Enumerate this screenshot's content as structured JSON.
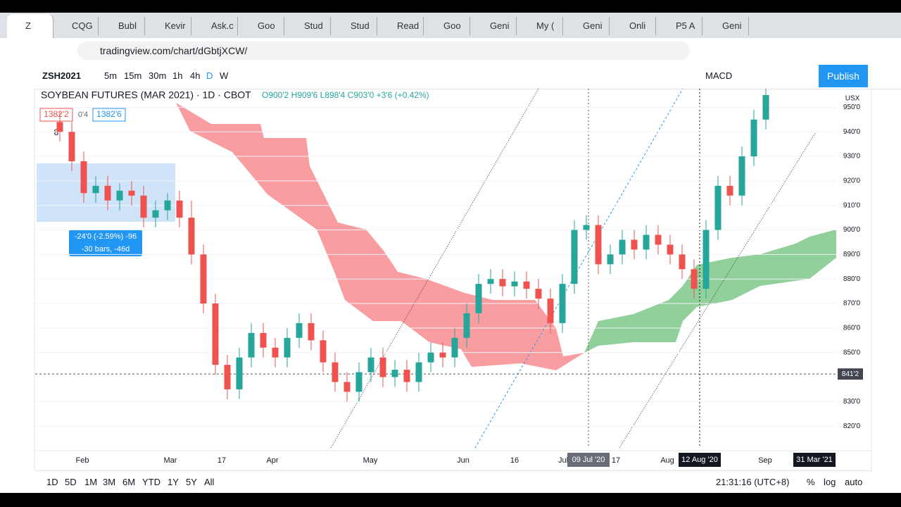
{
  "browser": {
    "tabs": [
      "Z",
      "CQG",
      "Bubl",
      "Kevir",
      "Ask.c",
      "Goo",
      "Stud",
      "Stud",
      "Read",
      "Goo",
      "Geni",
      "My (",
      "Geni",
      "Onli",
      "P5 A",
      "Geni"
    ],
    "url": "tradingview.com/chart/dGbtjXCW/"
  },
  "toolbar": {
    "symbol": "ZSH2021",
    "intervals": [
      "5m",
      "15m",
      "30m",
      "1h",
      "4h",
      "D",
      "W"
    ],
    "indicator": "MACD",
    "publish": "Publish"
  },
  "legend": {
    "title": "SOYBEAN FUTURES (MAR 2021) · 1D · CBOT",
    "ohlc": "O900'2 H909'6 L898'4 C903'0 +3'6 (+0.42%)",
    "bid": "1382'2",
    "spread": "0'4",
    "ask": "1382'6",
    "count": "8"
  },
  "measure": {
    "line1": "-24'0 (-2.59%) -96",
    "line2": "-30 bars, -46d"
  },
  "chart_data": {
    "type": "candlestick",
    "currency": "USX",
    "ylim": [
      810,
      957
    ],
    "yticks": [
      {
        "value": 950,
        "label": "950'0"
      },
      {
        "value": 940,
        "label": "940'0"
      },
      {
        "value": 930,
        "label": "930'0"
      },
      {
        "value": 920,
        "label": "920'0"
      },
      {
        "value": 910,
        "label": "910'0"
      },
      {
        "value": 900,
        "label": "900'0"
      },
      {
        "value": 890,
        "label": "890'0"
      },
      {
        "value": 880,
        "label": "880'0"
      },
      {
        "value": 870,
        "label": "870'0"
      },
      {
        "value": 860,
        "label": "860'0"
      },
      {
        "value": 850,
        "label": "850'0"
      },
      {
        "value": 830,
        "label": "830'0"
      },
      {
        "value": 820,
        "label": "820'0"
      }
    ],
    "last_price": {
      "value": 841.25,
      "label": "841'2"
    },
    "x_labels": [
      "Feb",
      "Mar",
      "17",
      "Apr",
      "May",
      "Jun",
      "16",
      "Jul",
      "17",
      "Aug",
      "Sep"
    ],
    "date_badges": [
      "09 Jul '20",
      "12 Aug '20",
      "31 Mar '21"
    ],
    "up_color": "#26a69a",
    "down_color": "#ef5350",
    "open": [
      944,
      940,
      928,
      915,
      918,
      912,
      916,
      914,
      905,
      908,
      912,
      905,
      890,
      870,
      845,
      835,
      848,
      858,
      852,
      848,
      856,
      862,
      855,
      846,
      838,
      834,
      842,
      848,
      840,
      843,
      838,
      846,
      850,
      848,
      856,
      866,
      878,
      880,
      877,
      879,
      876,
      872,
      862,
      878,
      900,
      902,
      886,
      890,
      896,
      892,
      898,
      894,
      890,
      884,
      876,
      900,
      918,
      914,
      930,
      945
    ],
    "high": [
      948,
      944,
      932,
      922,
      922,
      919,
      920,
      918,
      912,
      915,
      916,
      912,
      894,
      874,
      849,
      852,
      862,
      862,
      856,
      860,
      866,
      866,
      859,
      850,
      842,
      846,
      852,
      852,
      847,
      847,
      850,
      854,
      854,
      860,
      870,
      882,
      884,
      884,
      883,
      883,
      880,
      876,
      882,
      904,
      906,
      906,
      894,
      900,
      900,
      902,
      902,
      898,
      894,
      888,
      904,
      922,
      922,
      934,
      949,
      959
    ],
    "low": [
      936,
      924,
      911,
      911,
      908,
      908,
      910,
      901,
      901,
      904,
      901,
      886,
      866,
      841,
      831,
      831,
      844,
      848,
      844,
      844,
      852,
      851,
      842,
      834,
      830,
      830,
      838,
      836,
      836,
      834,
      834,
      842,
      844,
      844,
      852,
      862,
      874,
      873,
      873,
      872,
      868,
      858,
      858,
      874,
      896,
      882,
      882,
      886,
      888,
      888,
      890,
      886,
      880,
      872,
      872,
      896,
      910,
      910,
      926,
      941
    ],
    "close": [
      940,
      928,
      915,
      918,
      912,
      916,
      914,
      905,
      908,
      912,
      905,
      890,
      870,
      845,
      835,
      848,
      858,
      852,
      848,
      856,
      862,
      855,
      846,
      838,
      834,
      842,
      848,
      840,
      843,
      838,
      846,
      850,
      848,
      856,
      866,
      878,
      880,
      877,
      879,
      876,
      872,
      862,
      878,
      900,
      902,
      886,
      890,
      896,
      892,
      898,
      894,
      890,
      884,
      876,
      900,
      918,
      914,
      930,
      945,
      955
    ]
  },
  "bottom": {
    "ranges": [
      "1D",
      "5D",
      "1M",
      "3M",
      "6M",
      "YTD",
      "1Y",
      "5Y",
      "All"
    ],
    "clock": "21:31:16 (UTC+8)",
    "percent": "%",
    "log": "log",
    "auto": "auto"
  }
}
